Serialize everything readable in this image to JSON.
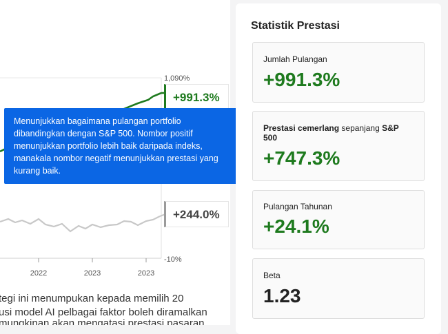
{
  "chart": {
    "y_max_label": "1,090%",
    "y_min_label": "-10%",
    "x_labels": [
      "2022",
      "2023",
      "2023"
    ],
    "portfolio_label": "+991.3%",
    "index_label": "+244.0%",
    "colors": {
      "portfolio": "#1e7a1e",
      "index": "#c8c8c8"
    }
  },
  "chart_data": {
    "type": "line",
    "x": [
      "2022",
      "2023",
      "2023"
    ],
    "series": [
      {
        "values": [
          160,
          120,
          991.3
        ]
      },
      {
        "values": [
          40,
          30,
          244.0
        ]
      }
    ],
    "ylim": [
      -10,
      1090
    ]
  },
  "description": {
    "lines": [
      "tegi ini menumpukan kepada memilih 20",
      "usi model AI pelbagai faktor boleh diramalkan",
      "mungkinan akan mengatasi prestasi pasaran"
    ]
  },
  "tooltip": {
    "lines": [
      "Menunjukkan bagaimana pulangan portfolio",
      "dibandingkan dengan S&P 500. Nombor positif",
      "menunjukkan portfolio lebih baik daripada indeks,",
      "manakala nombor negatif menunjukkan prestasi yang",
      "kurang baik."
    ]
  },
  "stats": {
    "title": "Statistik Prestasi",
    "total_return": {
      "label": "Jumlah Pulangan",
      "value": "+991.3%"
    },
    "outperformance": {
      "label_bold": "Prestasi cemerlang",
      "label_mid": " sepanjang ",
      "label_bold2": "S&P",
      "label_line2": "500",
      "value": "+747.3%"
    },
    "annual_return": {
      "label": "Pulangan Tahunan",
      "value": "+24.1%"
    },
    "beta": {
      "label": "Beta",
      "value": "1.23"
    }
  }
}
